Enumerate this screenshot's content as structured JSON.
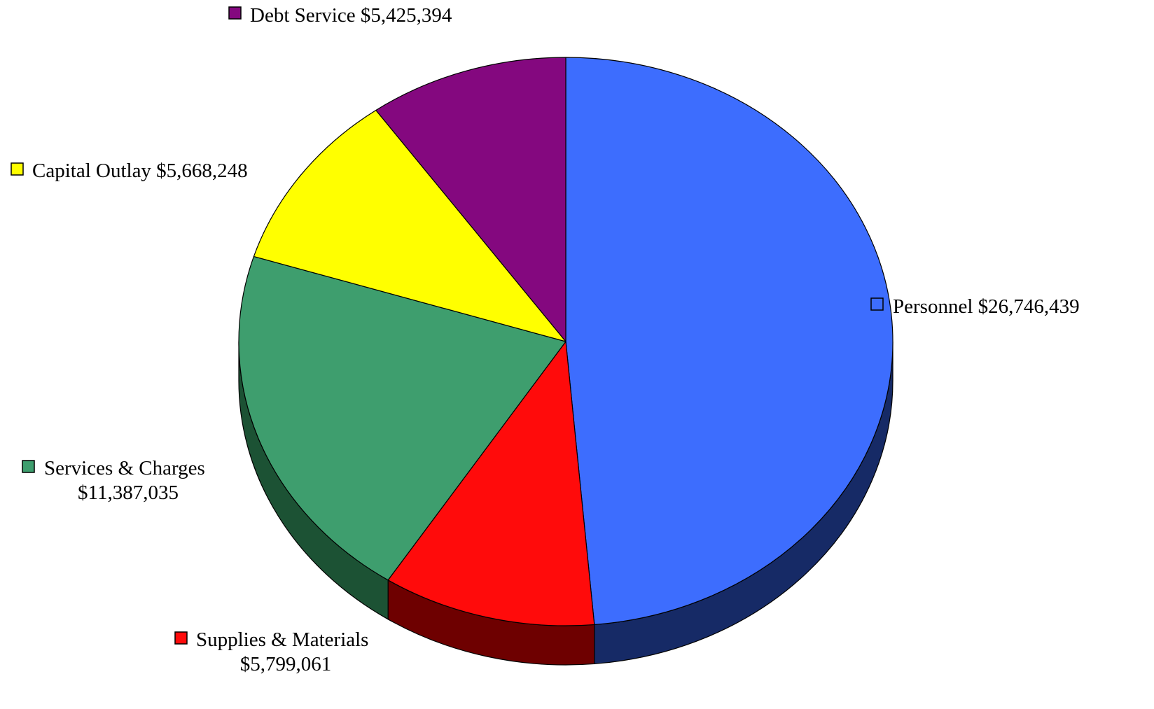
{
  "chart_data": {
    "type": "pie",
    "style": "3d",
    "title": "",
    "slices": [
      {
        "label": "Personnel",
        "value_text": "$26,746,439",
        "value": 26746439,
        "color": "#3d6dfe",
        "side_color": "#162a66"
      },
      {
        "label": "Supplies & Materials",
        "value_text": "$5,799,061",
        "value": 5799061,
        "color": "#ff0b0b",
        "side_color": "#6e0000"
      },
      {
        "label": "Services & Charges",
        "value_text": "$11,387,035",
        "value": 11387035,
        "color": "#3e9e6e",
        "side_color": "#1c5234"
      },
      {
        "label": "Capital Outlay",
        "value_text": "$5,668,248",
        "value": 5668248,
        "color": "#ffff00",
        "side_color": "#8a8a00"
      },
      {
        "label": "Debt Service",
        "value_text": "$5,425,394",
        "value": 5425394,
        "color": "#84087f",
        "side_color": "#420440"
      }
    ],
    "legend_placement": "around-pie"
  }
}
